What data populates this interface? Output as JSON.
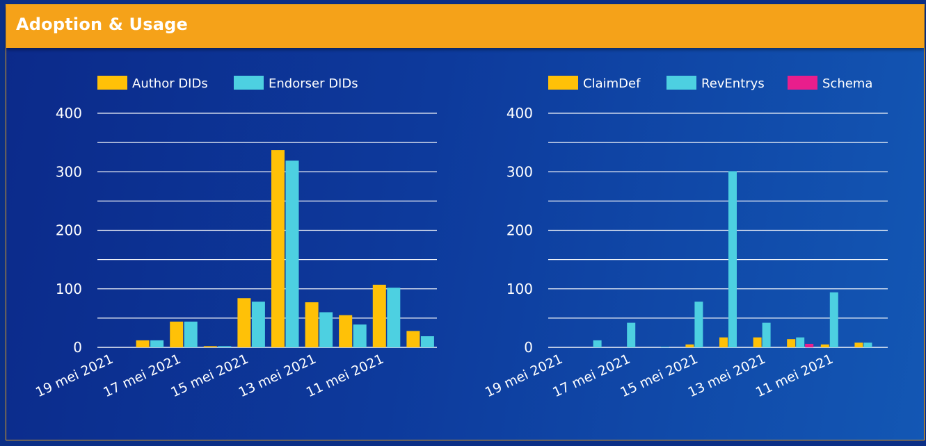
{
  "panel": {
    "title": "Adoption & Usage"
  },
  "colors": {
    "gold": "#FFC107",
    "cyan": "#4DD0E1",
    "magenta": "#E91E8C",
    "grid": "#FFFFFF",
    "header": "#F5A219"
  },
  "chart_data": [
    {
      "type": "bar",
      "x_tick_labels": [
        "19 mei 2021",
        "17 mei 2021",
        "15 mei 2021",
        "13 mei 2021",
        "11 mei 2021"
      ],
      "y_ticks": [
        0,
        100,
        200,
        300,
        400
      ],
      "ylim": [
        0,
        400
      ],
      "grid": true,
      "legend_position": "top",
      "series": [
        {
          "name": "Author DIDs",
          "color": "#FFC107",
          "values": [
            0,
            12,
            44,
            2,
            84,
            337,
            77,
            55,
            107,
            28
          ]
        },
        {
          "name": "Endorser DIDs",
          "color": "#4DD0E1",
          "values": [
            0,
            12,
            44,
            2,
            78,
            319,
            60,
            39,
            102,
            19
          ]
        }
      ]
    },
    {
      "type": "bar",
      "x_tick_labels": [
        "19 mei 2021",
        "17 mei 2021",
        "15 mei 2021",
        "13 mei 2021",
        "11 mei 2021"
      ],
      "y_ticks": [
        0,
        100,
        200,
        300,
        400
      ],
      "ylim": [
        0,
        400
      ],
      "grid": true,
      "legend_position": "top",
      "series": [
        {
          "name": "ClaimDef",
          "color": "#FFC107",
          "values": [
            0,
            0,
            0,
            0,
            5,
            17,
            17,
            14,
            5,
            8
          ]
        },
        {
          "name": "RevEntrys",
          "color": "#4DD0E1",
          "values": [
            0,
            12,
            42,
            1,
            78,
            301,
            42,
            17,
            94,
            8
          ]
        },
        {
          "name": "Schema",
          "color": "#E91E8C",
          "values": [
            0,
            0,
            0,
            0,
            0,
            0,
            0,
            6,
            0,
            0
          ]
        }
      ]
    }
  ]
}
